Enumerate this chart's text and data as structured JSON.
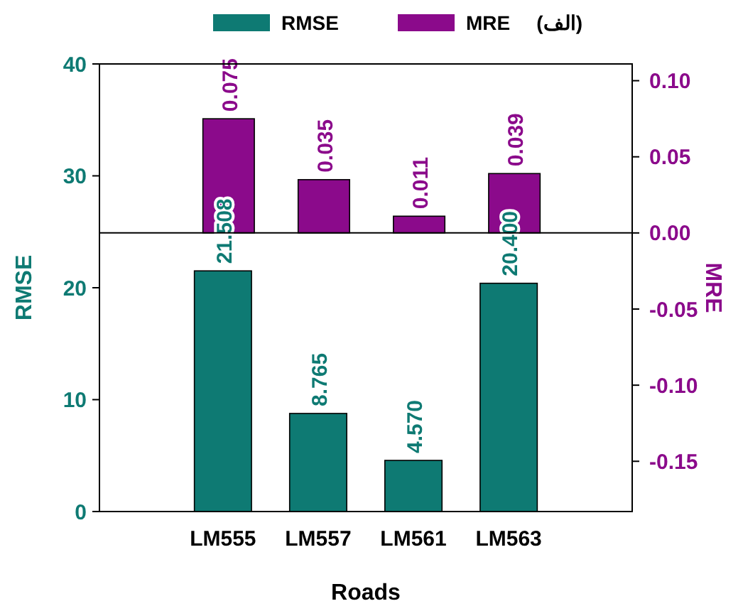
{
  "chart_data": {
    "type": "bar",
    "title": "(الف)",
    "xlabel": "Roads",
    "ylabel": "RMSE",
    "y2label": "MRE",
    "categories": [
      "LM555",
      "LM557",
      "LM561",
      "LM563"
    ],
    "series": [
      {
        "name": "RMSE",
        "color": "#0e7a73",
        "values": [
          21.508,
          8.765,
          4.57,
          20.4
        ],
        "value_labels": [
          "21.508",
          "8.765",
          "4.570",
          "20.400"
        ]
      },
      {
        "name": "MRE",
        "color": "#8b0a8b",
        "values": [
          0.075,
          0.035,
          0.011,
          0.039
        ],
        "axis": "y2",
        "value_labels": [
          "0.075",
          "0.035",
          "0.011",
          "0.039"
        ]
      }
    ],
    "ylim": [
      0,
      40
    ],
    "yticks": [
      0,
      10,
      20,
      30,
      40
    ],
    "y2lim": [
      -0.183,
      0.111
    ],
    "y2ticks": [
      {
        "value": 0.1,
        "label": "0.10"
      },
      {
        "value": 0.05,
        "label": "0.05"
      },
      {
        "value": 0,
        "label": "0.00"
      },
      {
        "value": -0.05,
        "label": "-0.05"
      },
      {
        "value": -0.1,
        "label": "-0.10"
      },
      {
        "value": -0.15,
        "label": "-0.15"
      }
    ],
    "ref_lines": [
      {
        "axis": "y2",
        "value": 0
      }
    ],
    "data_labels": true,
    "legend": "top",
    "grid": false
  }
}
